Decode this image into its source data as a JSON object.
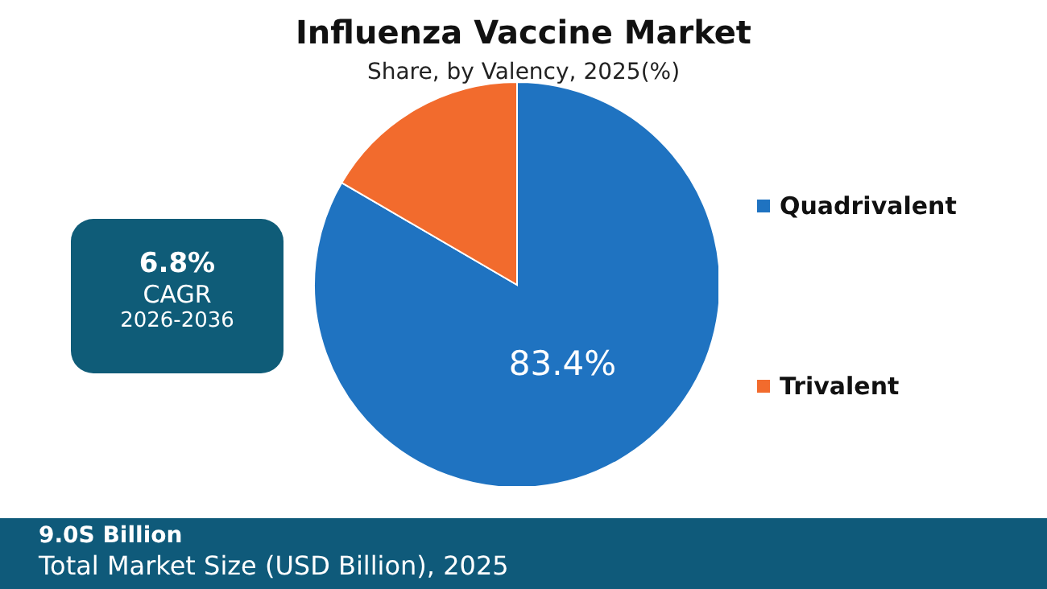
{
  "chart_data": {
    "type": "pie",
    "title": "Influenza Vaccine Market",
    "subtitle": "Share, by Valency, 2025(%)",
    "categories": [
      "Quadrivalent",
      "Trivalent"
    ],
    "values": [
      83.4,
      16.6
    ],
    "colors": [
      "#1f73c1",
      "#f26b2d"
    ],
    "value_labels": [
      "83.4%",
      null
    ],
    "legend": "right",
    "annotations": [
      "6.8%",
      "CAGR",
      "2026-2036",
      "9.0S Billion",
      "Total Market Size (USD Billion), 2025"
    ]
  }
}
